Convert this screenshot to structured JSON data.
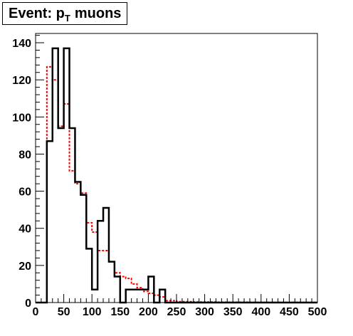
{
  "chart_data": {
    "type": "histogram",
    "title": {
      "main": "Event: p",
      "subscript": "T",
      "rest": "muons"
    },
    "xlim": [
      0,
      500
    ],
    "ylim": [
      0,
      145
    ],
    "xticks": [
      0,
      50,
      100,
      150,
      200,
      250,
      300,
      350,
      400,
      450,
      500
    ],
    "yticks": [
      0,
      20,
      40,
      60,
      80,
      100,
      120,
      140
    ],
    "bin_width": 10,
    "bin_start": 0,
    "grid": false,
    "series": [
      {
        "style": "solid",
        "color": "#000000",
        "values": [
          0,
          0,
          87,
          137,
          94,
          137,
          94,
          65,
          58,
          29,
          7,
          44,
          51,
          22,
          14,
          0,
          7,
          7,
          7,
          7,
          14,
          0,
          7,
          0,
          0,
          0,
          0,
          0,
          0,
          0,
          0,
          0,
          0,
          0,
          0,
          0,
          0,
          0,
          0,
          0,
          0,
          0,
          0,
          0,
          0,
          0,
          0,
          0,
          0,
          0
        ]
      },
      {
        "style": "dashed",
        "color": "#ff0000",
        "values": [
          0,
          0,
          127,
          120,
          95,
          107,
          71,
          64,
          59,
          43,
          38,
          28,
          28,
          22,
          16,
          14,
          13,
          10,
          8,
          6,
          5,
          4,
          3,
          1,
          1,
          0.5,
          0.5,
          0.5,
          0.3,
          0.3,
          0.3,
          0.3,
          0.2,
          0.2,
          0.2,
          0.2,
          0.2,
          0.2,
          0.1,
          0.1,
          0.1,
          0.1,
          0.1,
          0.1,
          0.1,
          0.1,
          0.1,
          0.1,
          0.1,
          0.1
        ]
      }
    ]
  }
}
